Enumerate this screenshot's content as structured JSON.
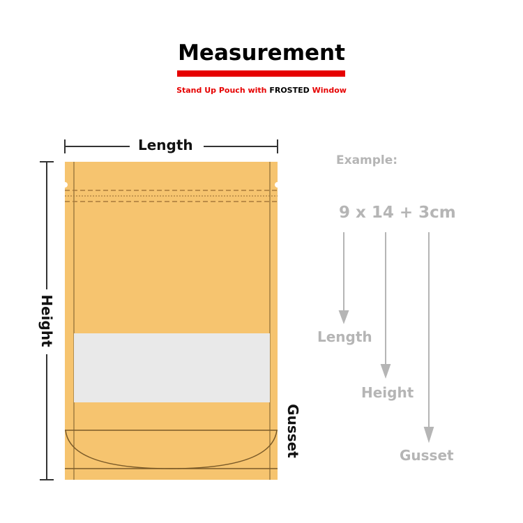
{
  "title": "Measurement",
  "subtitle": {
    "part1": "Stand Up Pouch with ",
    "part2": "FROSTED",
    "part3": " Window"
  },
  "labels": {
    "length": "Length",
    "height": "Height",
    "gusset": "Gusset"
  },
  "example": {
    "heading": "Example:",
    "formula": "9 x 14 + 3cm",
    "length": "Length",
    "height": "Height",
    "gusset": "Gusset"
  },
  "colors": {
    "bag": "#f6c46f",
    "window": "#e9e9e9",
    "accent": "#e60000",
    "gray": "#b5b5b5"
  }
}
